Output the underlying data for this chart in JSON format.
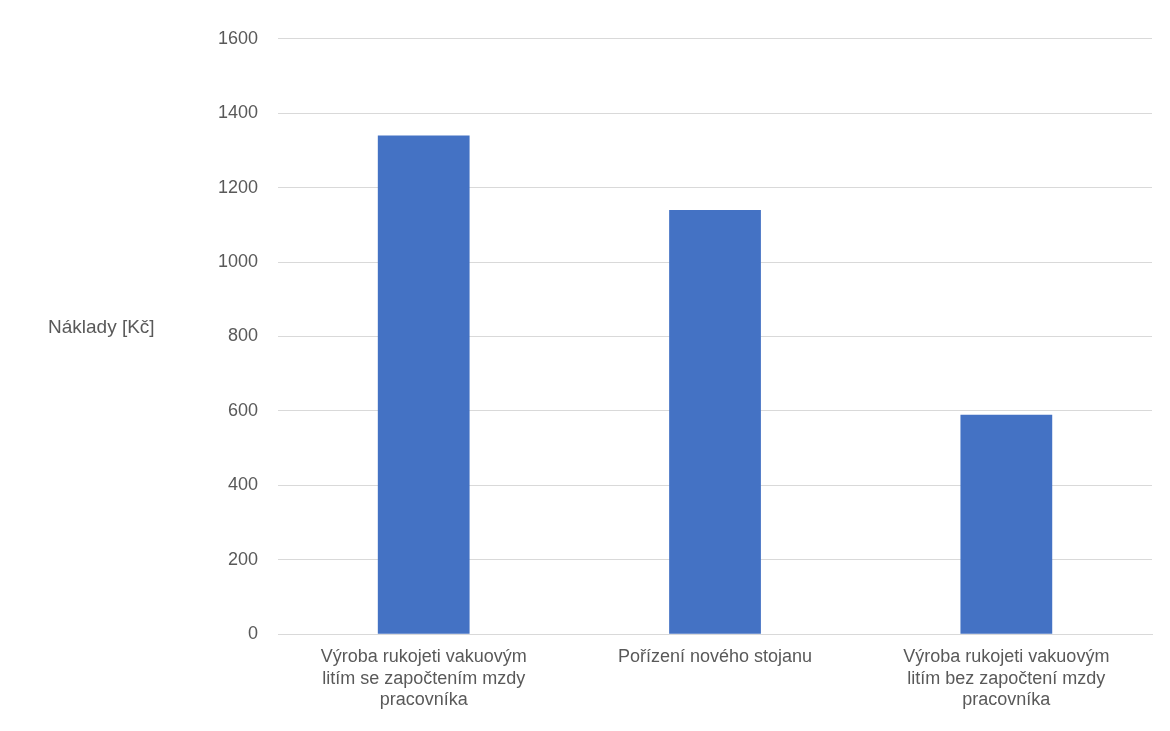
{
  "chart_data": {
    "type": "bar",
    "ylabel": "Náklady [Kč]",
    "categories": [
      "Výroba rukojeti vakuovým litím se započtením mzdy pracovníka",
      "Pořízení nového stojanu",
      "Výroba rukojeti vakuovým litím bez započtení mzdy pracovníka"
    ],
    "values": [
      1340,
      1140,
      590
    ],
    "color": "#4472c4",
    "ylim": [
      0,
      1600
    ],
    "yticks": [
      0,
      200,
      400,
      600,
      800,
      1000,
      1200,
      1400,
      1600
    ],
    "grid": "y",
    "legend": false
  }
}
